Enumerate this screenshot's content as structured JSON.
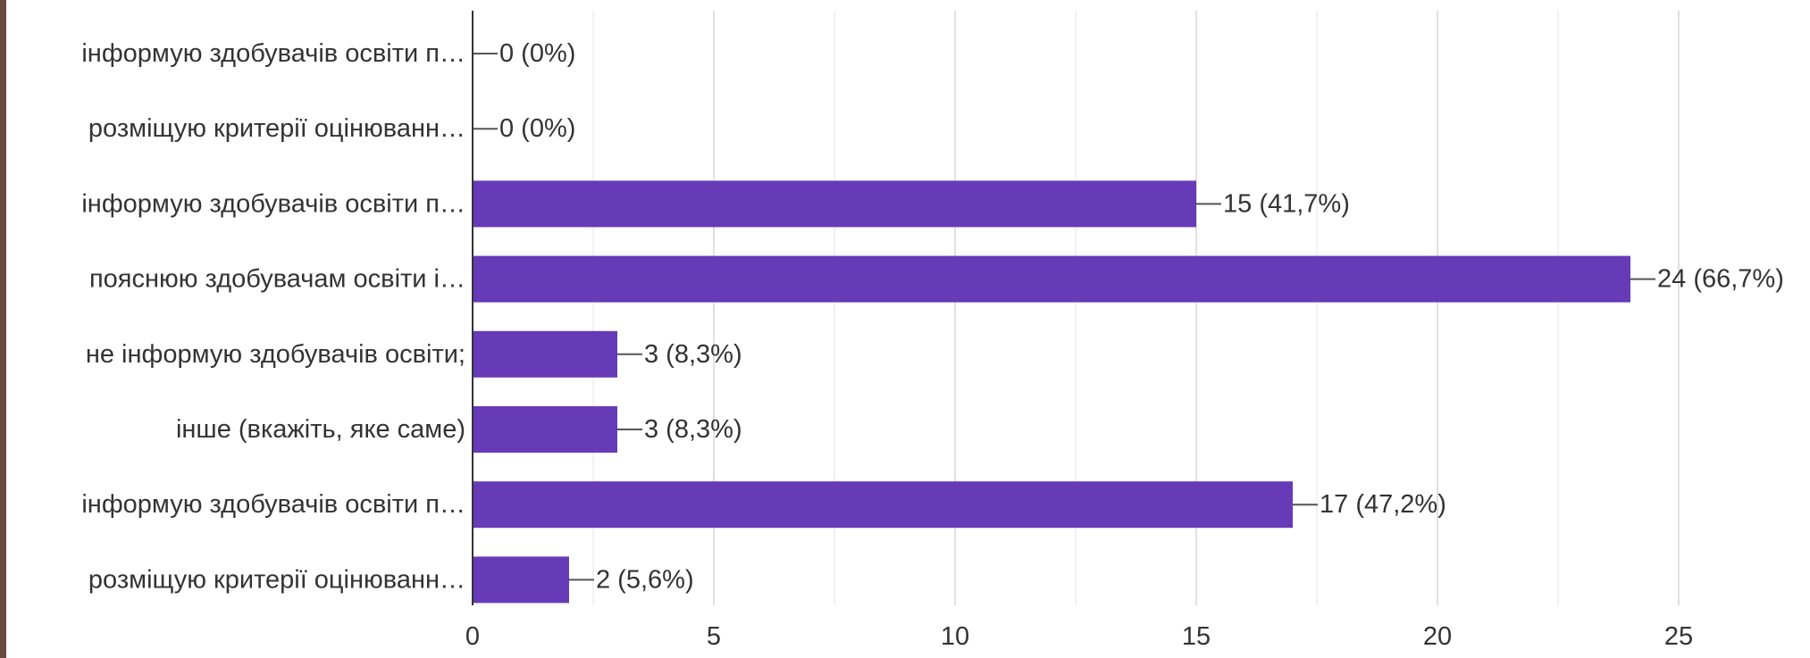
{
  "chart_data": {
    "type": "bar",
    "orientation": "horizontal",
    "categories": [
      "інформую здобувачів освіти п…",
      "розміщую критерії оцінюванн…",
      "інформую здобувачів освіти п…",
      "пояснюю здобувачам освіти і…",
      "не інформую здобувачів освіти;",
      "інше (вкажіть, яке саме)",
      "інформую здобувачів освіти п…",
      "розміщую критерії оцінюванн…"
    ],
    "values": [
      0,
      0,
      15,
      24,
      3,
      3,
      17,
      2
    ],
    "value_labels": [
      "0 (0%)",
      "0 (0%)",
      "15 (41,7%)",
      "24 (66,7%)",
      "3 (8,3%)",
      "3 (8,3%)",
      "17 (47,2%)",
      "2 (5,6%)"
    ],
    "xlim": [
      0,
      25
    ],
    "x_ticks": [
      0,
      5,
      10,
      15,
      20,
      25
    ],
    "x_tick_labels": [
      "0",
      "5",
      "10",
      "15",
      "20",
      "25"
    ],
    "grid": true,
    "bar_color": "#673ab7",
    "title": "",
    "xlabel": "",
    "ylabel": ""
  }
}
